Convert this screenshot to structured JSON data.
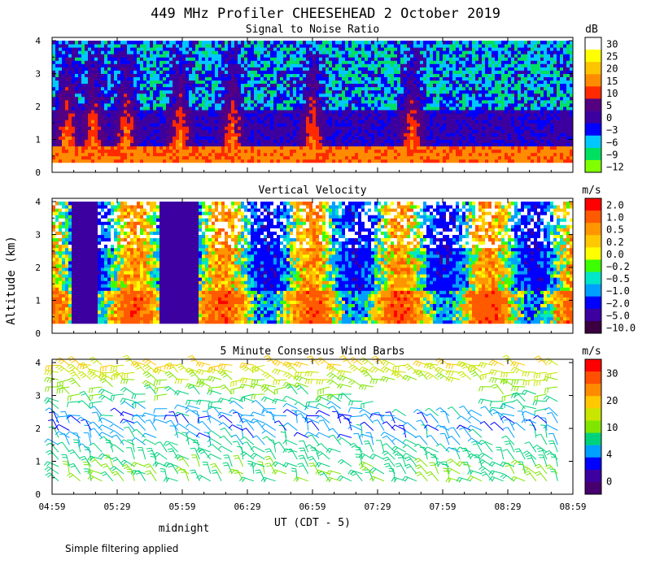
{
  "title": "449 MHz Profiler CHEESEHEAD  2 October 2019",
  "ylabel": "Altitude (km)",
  "xlabel": "UT  (CDT - 5)",
  "midnight_label": "midnight",
  "footer_note": "Simple filtering applied",
  "colors": {
    "missing": "#ffffff",
    "frame": "#000000"
  },
  "chart_data": [
    {
      "type": "heatmap",
      "title": "Signal to Noise Ratio",
      "unit": "dB",
      "x_ticks": [
        "04:59",
        "05:29",
        "05:59",
        "06:29",
        "06:59",
        "07:29",
        "07:59",
        "08:29",
        "08:59"
      ],
      "y_ticks": [
        "0",
        "1",
        "2",
        "3",
        "4"
      ],
      "xlim": [
        "04:59",
        "08:59"
      ],
      "ylim": [
        0,
        4.1
      ],
      "data_altitude_range_km": [
        0.3,
        4.0
      ],
      "colorbar": {
        "labels": [
          "30",
          "25",
          "20",
          "15",
          "10",
          "5",
          "0",
          "−3",
          "−6",
          "−9",
          "−12"
        ],
        "colors": [
          "#ffffff",
          "#ffff00",
          "#ffc400",
          "#ff8c00",
          "#ff2a00",
          "#550080",
          "#3c00a0",
          "#0000ff",
          "#00c8ff",
          "#00e060",
          "#80ff00"
        ]
      },
      "features": {
        "strong_plumes_utc": [
          "05:06",
          "05:18",
          "05:33",
          "05:58",
          "06:22",
          "06:59",
          "07:45"
        ],
        "surface_layer_db": 15,
        "mid_layer_db": 0,
        "upper_layer_db": -6
      }
    },
    {
      "type": "heatmap",
      "title": "Vertical Velocity",
      "unit": "m/s",
      "x_ticks": [
        "04:59",
        "05:29",
        "05:59",
        "06:29",
        "06:59",
        "07:29",
        "07:59",
        "08:29",
        "08:59"
      ],
      "y_ticks": [
        "0",
        "1",
        "2",
        "3",
        "4"
      ],
      "xlim": [
        "04:59",
        "08:59"
      ],
      "ylim": [
        0,
        4.1
      ],
      "data_altitude_range_km": [
        0.3,
        4.0
      ],
      "colorbar": {
        "labels": [
          "2.0",
          "1.0",
          "0.5",
          "0.2",
          "0.0",
          "−0.2",
          "−0.5",
          "−1.0",
          "−2.0",
          "−5.0",
          "−10.0"
        ],
        "colors": [
          "#ff0000",
          "#ff5a00",
          "#ff9600",
          "#ffc800",
          "#ffff00",
          "#3cff00",
          "#00e6c8",
          "#00a0ff",
          "#0000ff",
          "#3c00a0",
          "#3a0040"
        ]
      },
      "features": {
        "strong_downdraft_utc": [
          [
            "05:08",
            "05:20"
          ],
          [
            "05:48",
            "06:07"
          ]
        ],
        "downdraft_value_m_s": -5.0
      }
    },
    {
      "type": "scatter",
      "title": "5 Minute Consensus Wind Barbs",
      "unit": "m/s",
      "x_ticks": [
        "04:59",
        "05:29",
        "05:59",
        "06:29",
        "06:59",
        "07:29",
        "07:59",
        "08:29",
        "08:59"
      ],
      "y_ticks": [
        "0",
        "1",
        "2",
        "3",
        "4"
      ],
      "xlim": [
        "04:59",
        "08:59"
      ],
      "ylim": [
        0,
        4.1
      ],
      "colorbar": {
        "labels": [
          "30",
          "20",
          "10",
          "4",
          "0"
        ],
        "colors": [
          "#ff0000",
          "#ff5000",
          "#ff8c00",
          "#ffc800",
          "#c8e600",
          "#80e600",
          "#00d27c",
          "#00a0ff",
          "#0000ff",
          "#3c00a0",
          "#46006e"
        ]
      },
      "barb_speed_by_altitude_m_s": [
        {
          "altitude_km": 0.5,
          "speed": 10
        },
        {
          "altitude_km": 1.0,
          "speed": 9
        },
        {
          "altitude_km": 1.5,
          "speed": 6
        },
        {
          "altitude_km": 2.0,
          "speed": 4
        },
        {
          "altitude_km": 2.5,
          "speed": 5
        },
        {
          "altitude_km": 3.0,
          "speed": 10
        },
        {
          "altitude_km": 3.5,
          "speed": 14
        },
        {
          "altitude_km": 4.0,
          "speed": 19
        }
      ]
    }
  ]
}
